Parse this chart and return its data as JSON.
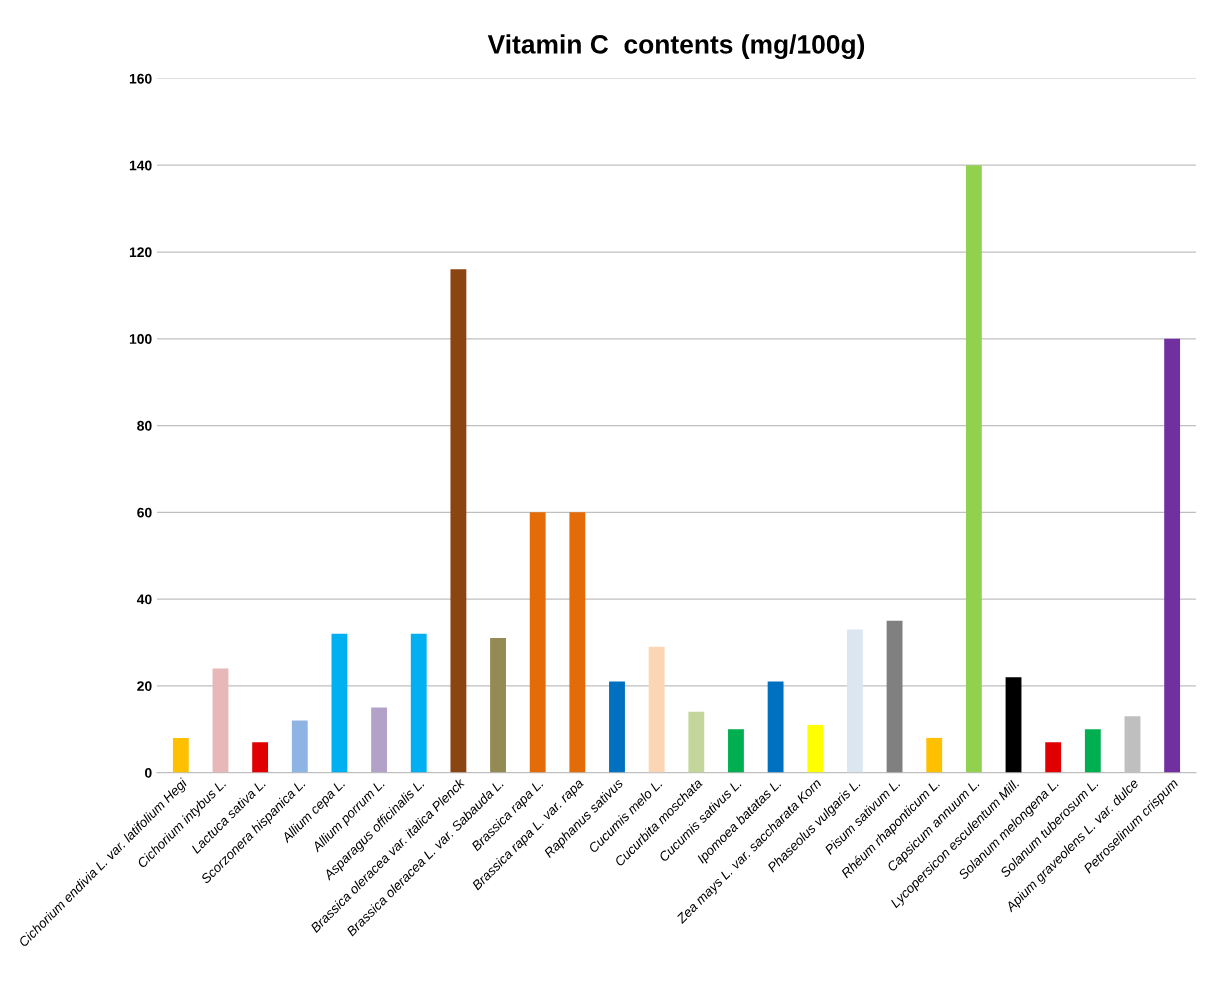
{
  "chart_data": {
    "type": "bar",
    "title": "Vitamin C  contents (mg/100g)",
    "categories": [
      "Cichorium endivia L. var. latifolium Hegi",
      "Cichorium intybus L.",
      "Lactuca sativa L.",
      "Scorzonera hispanica L.",
      "Allium cepa L.",
      "Allium porrum L.",
      "Asparagus officinalis L.",
      "Brassica oleracea var. italica Plenck",
      "Brassica oleracea L. var. Sabauda L.",
      "Brassica rapa L.",
      "Brassica rapa L. var. rapa",
      "Raphanus sativus",
      "Cucumis melo L.",
      "Cucurbita moschata",
      "Cucumis sativus L.",
      "Ipomoea batatas L.",
      "Zea mays L. var. saccharata Korn",
      "Phaseolus vulgaris L.",
      "Pisum sativum L.",
      "Rhéum rhaponticum L.",
      "Capsicum annuum L.",
      "Lycopersicon esculentum Mill.",
      "Solanum melongena L.",
      "Solanum tuberosum L.",
      "Apium graveolens L. var. dulce",
      "Petroselinum crispum"
    ],
    "values": [
      8,
      24,
      7,
      12,
      32,
      15,
      32,
      116,
      31,
      60,
      60,
      21,
      29,
      14,
      10,
      21,
      11,
      33,
      35,
      8,
      140,
      22,
      7,
      10,
      13,
      100
    ],
    "colors": [
      "#ffc000",
      "#e6b9b8",
      "#e00000",
      "#8db4e2",
      "#00b0f0",
      "#b3a2c7",
      "#00b0f0",
      "#8b4513",
      "#948a54",
      "#e36c09",
      "#e36c09",
      "#0070c0",
      "#fcd5b4",
      "#c4d79b",
      "#00b050",
      "#0070c0",
      "#ffff00",
      "#dce6f1",
      "#808080",
      "#ffc000",
      "#92d050",
      "#000000",
      "#e00000",
      "#00b050",
      "#bfbfbf",
      "#7030a0"
    ],
    "ylim": [
      0,
      160
    ],
    "yticks": [
      0,
      20,
      40,
      60,
      80,
      100,
      120,
      140,
      160
    ],
    "grid": "y",
    "legend": false
  }
}
